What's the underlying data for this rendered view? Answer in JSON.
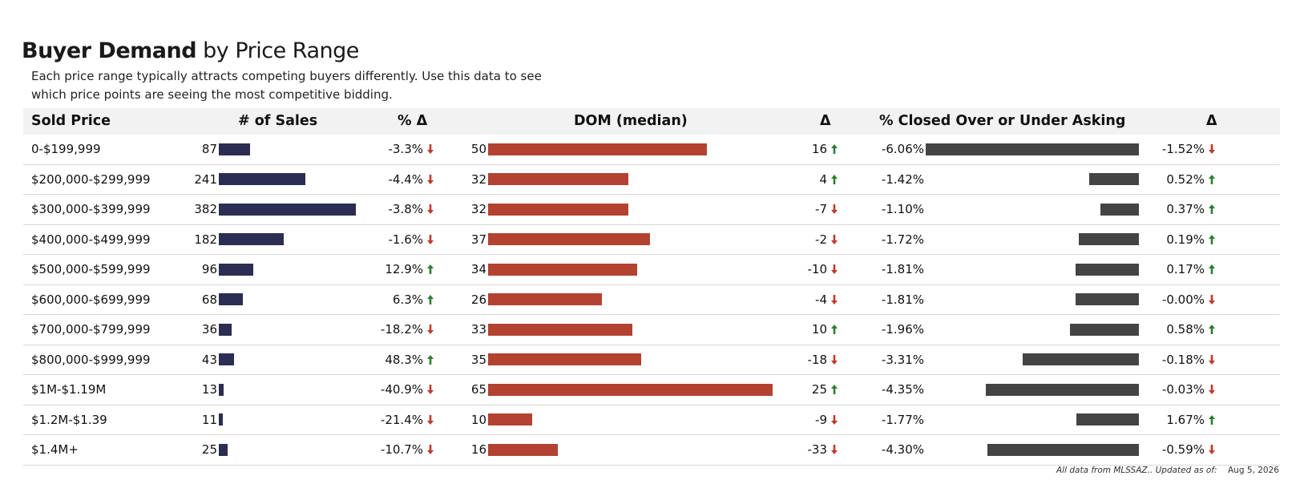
{
  "title_bold": "Buyer Demand",
  "title_light": " by Price Range",
  "subtitle": "Each price range typically attracts competing buyers differently.  Use this data to see which price points are seeing the most competitive bidding.",
  "headers": {
    "sold_price": "Sold Price",
    "num_sales": "# of Sales",
    "pct_delta": "% Δ",
    "dom": "DOM (median)",
    "dom_delta": "Δ",
    "closed": "% Closed Over or Under Asking",
    "closed_delta": "Δ"
  },
  "colors": {
    "sales_bar": "#2c2d52",
    "dom_bar": "#b34230",
    "closed_bar": "#444444",
    "arrow_up": "#2e7d32",
    "arrow_down": "#c0392b"
  },
  "chart_data": {
    "type": "table",
    "columns": [
      "Sold Price",
      "# of Sales",
      "% Δ",
      "DOM (median)",
      "Δ",
      "% Closed Over or Under Asking",
      "Δ"
    ],
    "rows": [
      {
        "range": "0-$199,999",
        "sales": 87,
        "sales_chg": "-3.3%",
        "sales_dir": "down",
        "dom": 50,
        "dom_chg": "16",
        "dom_dir": "up",
        "closed": "-6.06%",
        "closed_val": -6.06,
        "closed_chg": "-1.52%",
        "closed_dir": "down"
      },
      {
        "range": "$200,000-$299,999",
        "sales": 241,
        "sales_chg": "-4.4%",
        "sales_dir": "down",
        "dom": 32,
        "dom_chg": "4",
        "dom_dir": "up",
        "closed": "-1.42%",
        "closed_val": -1.42,
        "closed_chg": "0.52%",
        "closed_dir": "up"
      },
      {
        "range": "$300,000-$399,999",
        "sales": 382,
        "sales_chg": "-3.8%",
        "sales_dir": "down",
        "dom": 32,
        "dom_chg": "-7",
        "dom_dir": "down",
        "closed": "-1.10%",
        "closed_val": -1.1,
        "closed_chg": "0.37%",
        "closed_dir": "up"
      },
      {
        "range": "$400,000-$499,999",
        "sales": 182,
        "sales_chg": "-1.6%",
        "sales_dir": "down",
        "dom": 37,
        "dom_chg": "-2",
        "dom_dir": "down",
        "closed": "-1.72%",
        "closed_val": -1.72,
        "closed_chg": "0.19%",
        "closed_dir": "up"
      },
      {
        "range": "$500,000-$599,999",
        "sales": 96,
        "sales_chg": "12.9%",
        "sales_dir": "up",
        "dom": 34,
        "dom_chg": "-10",
        "dom_dir": "down",
        "closed": "-1.81%",
        "closed_val": -1.81,
        "closed_chg": "0.17%",
        "closed_dir": "up"
      },
      {
        "range": "$600,000-$699,999",
        "sales": 68,
        "sales_chg": "6.3%",
        "sales_dir": "up",
        "dom": 26,
        "dom_chg": "-4",
        "dom_dir": "down",
        "closed": "-1.81%",
        "closed_val": -1.81,
        "closed_chg": "-0.00%",
        "closed_dir": "down"
      },
      {
        "range": "$700,000-$799,999",
        "sales": 36,
        "sales_chg": "-18.2%",
        "sales_dir": "down",
        "dom": 33,
        "dom_chg": "10",
        "dom_dir": "up",
        "closed": "-1.96%",
        "closed_val": -1.96,
        "closed_chg": "0.58%",
        "closed_dir": "up"
      },
      {
        "range": "$800,000-$999,999",
        "sales": 43,
        "sales_chg": "48.3%",
        "sales_dir": "up",
        "dom": 35,
        "dom_chg": "-18",
        "dom_dir": "down",
        "closed": "-3.31%",
        "closed_val": -3.31,
        "closed_chg": "-0.18%",
        "closed_dir": "down"
      },
      {
        "range": "$1M-$1.19M",
        "sales": 13,
        "sales_chg": "-40.9%",
        "sales_dir": "down",
        "dom": 65,
        "dom_chg": "25",
        "dom_dir": "up",
        "closed": "-4.35%",
        "closed_val": -4.35,
        "closed_chg": "-0.03%",
        "closed_dir": "down"
      },
      {
        "range": "$1.2M-$1.39",
        "sales": 11,
        "sales_chg": "-21.4%",
        "sales_dir": "down",
        "dom": 10,
        "dom_chg": "-9",
        "dom_dir": "down",
        "closed": "-1.77%",
        "closed_val": -1.77,
        "closed_chg": "1.67%",
        "closed_dir": "up"
      },
      {
        "range": "$1.4M+",
        "sales": 25,
        "sales_chg": "-10.7%",
        "sales_dir": "down",
        "dom": 16,
        "dom_chg": "-33",
        "dom_dir": "down",
        "closed": "-4.30%",
        "closed_val": -4.3,
        "closed_chg": "-0.59%",
        "closed_dir": "down"
      }
    ],
    "sales_max": 382,
    "dom_max": 65,
    "closed_max_abs": 6.06
  },
  "footnote": "All data from MLSSAZ.. Updated as of:",
  "footdate": "Aug 5, 2026"
}
